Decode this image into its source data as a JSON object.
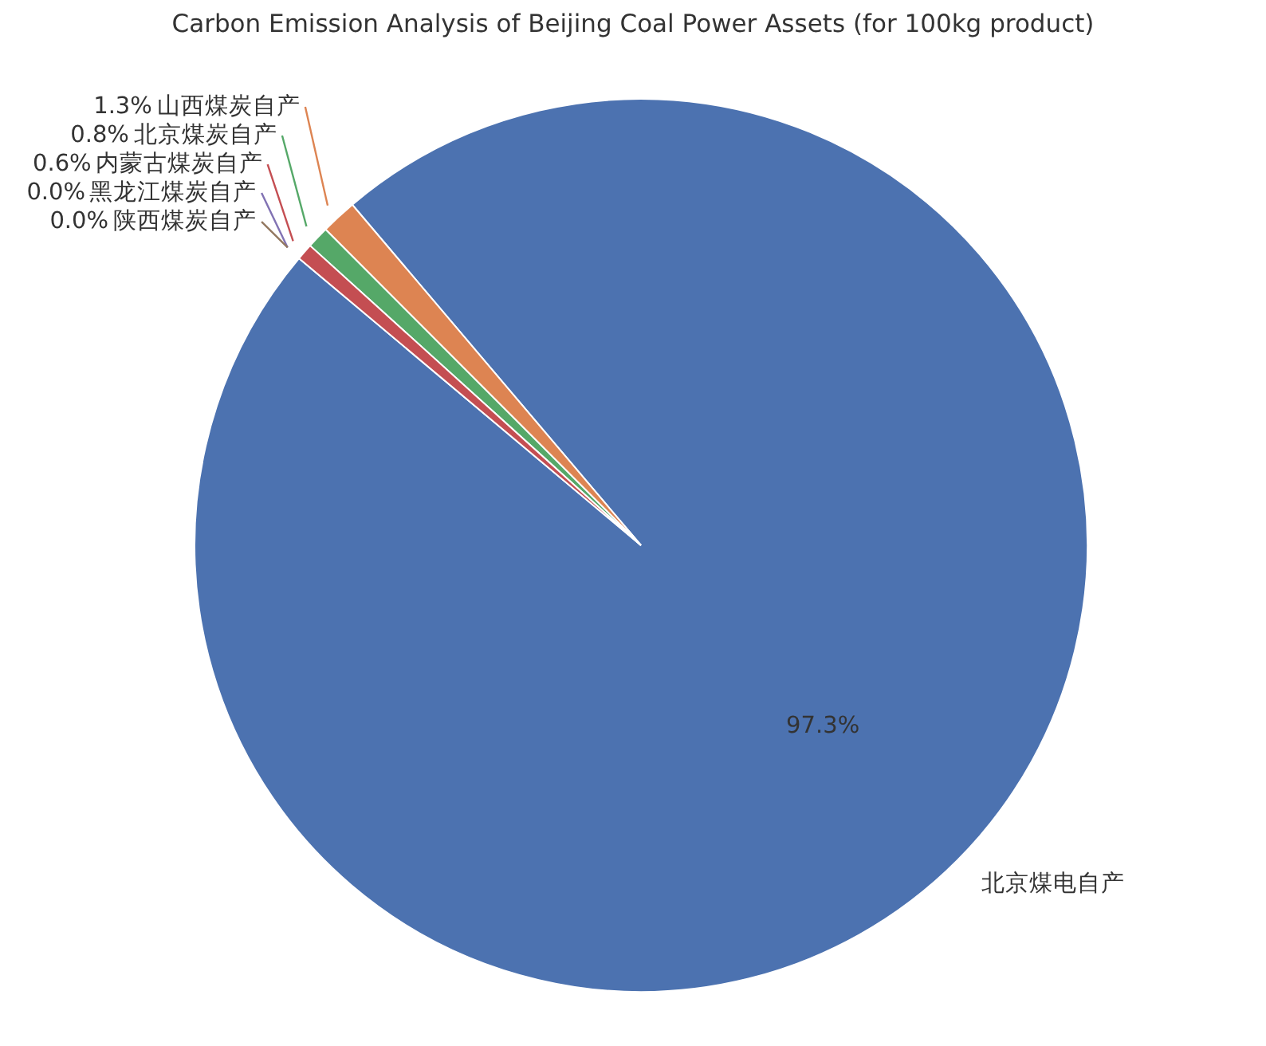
{
  "chart_data": {
    "type": "pie",
    "title": "Carbon Emission Analysis of Beijing Coal Power Assets (for 100kg product)",
    "categories": [
      "北京煤电自产",
      "山西煤炭自产",
      "北京煤炭自产",
      "内蒙古煤炭自产",
      "黑龙江煤炭自产",
      "陕西煤炭自产"
    ],
    "values": [
      97.3,
      1.3,
      0.8,
      0.6,
      0,
      0
    ],
    "colors": [
      "#4c72b0",
      "#dd8452",
      "#55a868",
      "#c44e52",
      "#8172b3",
      "#937860"
    ],
    "value_labels": [
      "97.3%",
      "1.3%",
      "0.8%",
      "0.6%",
      "0.0%",
      "0.0%"
    ]
  }
}
